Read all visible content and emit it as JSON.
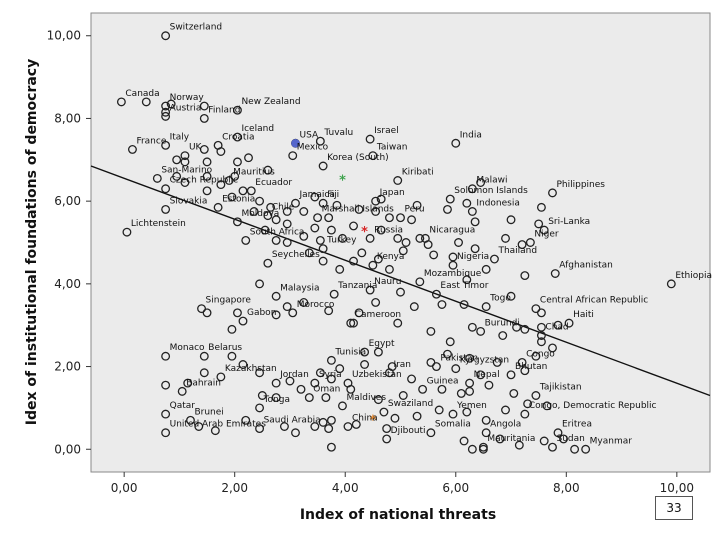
{
  "page_number": "33",
  "chart_data": {
    "type": "scatter",
    "xlabel": "Index of national threats",
    "ylabel": "Idex of institutional foundations of democracy",
    "xlim": [
      -0.6,
      10.6
    ],
    "ylim": [
      -0.55,
      10.55
    ],
    "xticks": [
      "0,00",
      "2,00",
      "4,00",
      "6,00",
      "8,00",
      "10,00"
    ],
    "xtick_values": [
      0,
      2,
      4,
      6,
      8,
      10
    ],
    "yticks": [
      "0,00",
      "2,00",
      "4,00",
      "6,00",
      "8,00",
      "10,00"
    ],
    "ytick_values": [
      0,
      2,
      4,
      6,
      8,
      10
    ],
    "grid": false,
    "plot_background": "#ebebeb",
    "marker_color": "#222222",
    "fit_line": {
      "x": [
        -0.6,
        10.6
      ],
      "y": [
        6.85,
        1.3
      ],
      "color": "#111111"
    },
    "highlight_points": [
      {
        "x": 3.1,
        "y": 7.4,
        "color": "#5566cc"
      },
      {
        "x": 3.95,
        "y": 6.5,
        "color": "#3fa34d"
      },
      {
        "x": 4.35,
        "y": 5.25,
        "color": "#d62728"
      },
      {
        "x": 4.5,
        "y": 0.7,
        "color": "#f28c28"
      }
    ],
    "labeled_points": [
      {
        "label": "Switzerland",
        "x": 0.75,
        "y": 10.0
      },
      {
        "label": "Canada",
        "x": -0.05,
        "y": 8.4
      },
      {
        "label": "Norway",
        "x": 0.75,
        "y": 8.3
      },
      {
        "label": "New Zealand",
        "x": 2.05,
        "y": 8.2
      },
      {
        "label": "Austria",
        "x": 0.75,
        "y": 8.05
      },
      {
        "label": "Finland",
        "x": 1.45,
        "y": 8.0
      },
      {
        "label": "Iceland",
        "x": 2.05,
        "y": 7.55
      },
      {
        "label": "France",
        "x": 0.15,
        "y": 7.25
      },
      {
        "label": "Italy",
        "x": 0.75,
        "y": 7.35
      },
      {
        "label": "Croatia",
        "x": 1.7,
        "y": 7.35
      },
      {
        "label": "UK",
        "x": 1.1,
        "y": 7.1
      },
      {
        "label": "USA",
        "x": 3.1,
        "y": 7.4
      },
      {
        "label": "Tuvalu",
        "x": 3.55,
        "y": 7.45
      },
      {
        "label": "Israel",
        "x": 4.45,
        "y": 7.5
      },
      {
        "label": "India",
        "x": 6.0,
        "y": 7.4
      },
      {
        "label": "Mexico",
        "x": 3.05,
        "y": 7.1
      },
      {
        "label": "Taiwan",
        "x": 4.5,
        "y": 7.1
      },
      {
        "label": "Korea (South)",
        "x": 3.6,
        "y": 6.85
      },
      {
        "label": "San-Marino",
        "x": 0.6,
        "y": 6.55
      },
      {
        "label": "Mauritius",
        "x": 1.9,
        "y": 6.5
      },
      {
        "label": "Kiribati",
        "x": 4.95,
        "y": 6.5
      },
      {
        "label": "Malawi",
        "x": 6.3,
        "y": 6.3
      },
      {
        "label": "Czech Republic",
        "x": 0.75,
        "y": 6.3
      },
      {
        "label": "Ecuador",
        "x": 2.3,
        "y": 6.25
      },
      {
        "label": "Japan",
        "x": 4.55,
        "y": 6.0
      },
      {
        "label": "Solomon Islands",
        "x": 5.9,
        "y": 6.05
      },
      {
        "label": "Philippines",
        "x": 7.75,
        "y": 6.2
      },
      {
        "label": "Jamaica",
        "x": 3.1,
        "y": 5.95
      },
      {
        "label": "Fiji",
        "x": 3.6,
        "y": 5.95
      },
      {
        "label": "Estonia",
        "x": 1.7,
        "y": 5.85
      },
      {
        "label": "Slovakia",
        "x": 0.75,
        "y": 5.8
      },
      {
        "label": "Chile",
        "x": 2.6,
        "y": 5.65
      },
      {
        "label": "Marshall Islands",
        "x": 3.5,
        "y": 5.6
      },
      {
        "label": "Peru",
        "x": 5.0,
        "y": 5.6
      },
      {
        "label": "Indonesia",
        "x": 6.3,
        "y": 5.75
      },
      {
        "label": "Moldova",
        "x": 2.05,
        "y": 5.5
      },
      {
        "label": "Sri-Lanka",
        "x": 7.6,
        "y": 5.3
      },
      {
        "label": "Lichtenstein",
        "x": 0.05,
        "y": 5.25
      },
      {
        "label": "Russia",
        "x": 4.45,
        "y": 5.1
      },
      {
        "label": "Nicaragua",
        "x": 5.45,
        "y": 5.1
      },
      {
        "label": "South Africa",
        "x": 2.2,
        "y": 5.05
      },
      {
        "label": "Niger",
        "x": 7.35,
        "y": 5.0
      },
      {
        "label": "Turkey",
        "x": 3.6,
        "y": 4.85
      },
      {
        "label": "Seychelles",
        "x": 2.6,
        "y": 4.5
      },
      {
        "label": "Kenya",
        "x": 4.5,
        "y": 4.45
      },
      {
        "label": "Thailand",
        "x": 6.7,
        "y": 4.6
      },
      {
        "label": "Nigeria",
        "x": 5.95,
        "y": 4.45
      },
      {
        "label": "Afghanistan",
        "x": 7.8,
        "y": 4.25
      },
      {
        "label": "Ethiopia",
        "x": 9.9,
        "y": 4.0
      },
      {
        "label": "Mozambique",
        "x": 5.35,
        "y": 4.05
      },
      {
        "label": "East Timor",
        "x": 5.65,
        "y": 3.75
      },
      {
        "label": "Tanzania",
        "x": 3.8,
        "y": 3.75
      },
      {
        "label": "Nauru",
        "x": 4.45,
        "y": 3.85
      },
      {
        "label": "Malaysia",
        "x": 2.75,
        "y": 3.7
      },
      {
        "label": "Central African Republic",
        "x": 7.45,
        "y": 3.4
      },
      {
        "label": "Togo",
        "x": 6.55,
        "y": 3.45
      },
      {
        "label": "Singapore",
        "x": 1.4,
        "y": 3.4
      },
      {
        "label": "Morocco",
        "x": 3.05,
        "y": 3.3
      },
      {
        "label": "Gabon",
        "x": 2.15,
        "y": 3.1
      },
      {
        "label": "Haiti",
        "x": 8.05,
        "y": 3.05
      },
      {
        "label": "Cameroon",
        "x": 4.1,
        "y": 3.05
      },
      {
        "label": "Burundi",
        "x": 6.45,
        "y": 2.85
      },
      {
        "label": "Chad",
        "x": 7.55,
        "y": 2.75
      },
      {
        "label": "Monaco",
        "x": 0.75,
        "y": 2.25
      },
      {
        "label": "Belarus",
        "x": 1.45,
        "y": 2.25
      },
      {
        "label": "Egypt",
        "x": 4.35,
        "y": 2.35
      },
      {
        "label": "Tunisia",
        "x": 3.75,
        "y": 2.15
      },
      {
        "label": "Congo",
        "x": 7.2,
        "y": 2.1
      },
      {
        "label": "Pakistan",
        "x": 5.65,
        "y": 2.0
      },
      {
        "label": "Kyrgyzstan",
        "x": 6.0,
        "y": 1.95
      },
      {
        "label": "Iran",
        "x": 4.8,
        "y": 1.85
      },
      {
        "label": "Bhutan",
        "x": 7.0,
        "y": 1.8
      },
      {
        "label": "Kazakhstan",
        "x": 1.75,
        "y": 1.75
      },
      {
        "label": "Nepal",
        "x": 6.25,
        "y": 1.6
      },
      {
        "label": "Jordan",
        "x": 2.75,
        "y": 1.6
      },
      {
        "label": "Syria",
        "x": 3.45,
        "y": 1.6
      },
      {
        "label": "Uzbekistan",
        "x": 4.05,
        "y": 1.6
      },
      {
        "label": "Bahrain",
        "x": 1.05,
        "y": 1.4
      },
      {
        "label": "Tajikistan",
        "x": 7.45,
        "y": 1.3
      },
      {
        "label": "Guinea",
        "x": 5.4,
        "y": 1.45
      },
      {
        "label": "Oman",
        "x": 3.35,
        "y": 1.25
      },
      {
        "label": "Tonga",
        "x": 2.45,
        "y": 1.0
      },
      {
        "label": "Maldives",
        "x": 3.95,
        "y": 1.05
      },
      {
        "label": "Qatar",
        "x": 0.75,
        "y": 0.85
      },
      {
        "label": "Brunei",
        "x": 1.2,
        "y": 0.7
      },
      {
        "label": "Swaziland",
        "x": 4.7,
        "y": 0.9
      },
      {
        "label": "Yemen",
        "x": 5.95,
        "y": 0.85
      },
      {
        "label": "Congo, Democratic Republic",
        "x": 7.25,
        "y": 0.85
      },
      {
        "label": "China",
        "x": 4.05,
        "y": 0.55
      },
      {
        "label": "United Arab Emirates",
        "x": 0.75,
        "y": 0.4
      },
      {
        "label": "Saudi Arabia",
        "x": 2.45,
        "y": 0.5
      },
      {
        "label": "Somalia",
        "x": 5.55,
        "y": 0.4
      },
      {
        "label": "Angola",
        "x": 6.55,
        "y": 0.4
      },
      {
        "label": "Eritrea",
        "x": 7.85,
        "y": 0.4
      },
      {
        "label": "Djibouti",
        "x": 4.75,
        "y": 0.25
      },
      {
        "label": "Mauritania",
        "x": 6.5,
        "y": 0.05
      },
      {
        "label": "Sudan",
        "x": 7.75,
        "y": 0.05
      },
      {
        "label": "Myanmar",
        "x": 8.35,
        "y": 0.0
      }
    ],
    "unlabeled_points": [
      {
        "x": 0.75,
        "y": 8.15
      },
      {
        "x": 0.85,
        "y": 8.35
      },
      {
        "x": 1.45,
        "y": 8.3
      },
      {
        "x": 0.4,
        "y": 8.4
      },
      {
        "x": 1.45,
        "y": 7.25
      },
      {
        "x": 1.75,
        "y": 7.2
      },
      {
        "x": 0.95,
        "y": 7.0
      },
      {
        "x": 1.1,
        "y": 6.95
      },
      {
        "x": 0.95,
        "y": 6.6
      },
      {
        "x": 1.1,
        "y": 6.45
      },
      {
        "x": 1.5,
        "y": 6.95
      },
      {
        "x": 1.5,
        "y": 6.6
      },
      {
        "x": 1.5,
        "y": 6.25
      },
      {
        "x": 1.75,
        "y": 6.4
      },
      {
        "x": 2.0,
        "y": 6.6
      },
      {
        "x": 2.25,
        "y": 7.05
      },
      {
        "x": 2.05,
        "y": 6.95
      },
      {
        "x": 2.6,
        "y": 6.75
      },
      {
        "x": 2.15,
        "y": 6.25
      },
      {
        "x": 1.95,
        "y": 6.1
      },
      {
        "x": 2.45,
        "y": 6.0
      },
      {
        "x": 2.65,
        "y": 5.85
      },
      {
        "x": 2.35,
        "y": 5.75
      },
      {
        "x": 2.75,
        "y": 5.55
      },
      {
        "x": 2.95,
        "y": 5.75
      },
      {
        "x": 2.95,
        "y": 5.45
      },
      {
        "x": 2.55,
        "y": 5.3
      },
      {
        "x": 2.75,
        "y": 5.05
      },
      {
        "x": 2.95,
        "y": 5.0
      },
      {
        "x": 3.25,
        "y": 5.15
      },
      {
        "x": 3.45,
        "y": 5.35
      },
      {
        "x": 3.55,
        "y": 5.05
      },
      {
        "x": 3.25,
        "y": 5.75
      },
      {
        "x": 3.45,
        "y": 6.1
      },
      {
        "x": 3.7,
        "y": 5.6
      },
      {
        "x": 3.85,
        "y": 5.9
      },
      {
        "x": 3.75,
        "y": 5.3
      },
      {
        "x": 3.95,
        "y": 5.1
      },
      {
        "x": 4.15,
        "y": 5.4
      },
      {
        "x": 4.25,
        "y": 5.8
      },
      {
        "x": 4.55,
        "y": 5.75
      },
      {
        "x": 4.65,
        "y": 6.05
      },
      {
        "x": 4.8,
        "y": 5.6
      },
      {
        "x": 4.65,
        "y": 5.3
      },
      {
        "x": 4.95,
        "y": 5.1
      },
      {
        "x": 5.1,
        "y": 5.0
      },
      {
        "x": 5.35,
        "y": 5.1
      },
      {
        "x": 5.2,
        "y": 5.55
      },
      {
        "x": 5.3,
        "y": 5.9
      },
      {
        "x": 5.85,
        "y": 5.8
      },
      {
        "x": 6.35,
        "y": 5.5
      },
      {
        "x": 6.2,
        "y": 5.95
      },
      {
        "x": 6.45,
        "y": 6.45
      },
      {
        "x": 6.9,
        "y": 5.1
      },
      {
        "x": 7.2,
        "y": 4.95
      },
      {
        "x": 7.0,
        "y": 5.55
      },
      {
        "x": 7.5,
        "y": 5.45
      },
      {
        "x": 7.55,
        "y": 5.85
      },
      {
        "x": 6.05,
        "y": 5.0
      },
      {
        "x": 5.95,
        "y": 4.65
      },
      {
        "x": 5.6,
        "y": 4.7
      },
      {
        "x": 5.5,
        "y": 4.95
      },
      {
        "x": 5.05,
        "y": 4.8
      },
      {
        "x": 4.6,
        "y": 4.6
      },
      {
        "x": 4.8,
        "y": 4.35
      },
      {
        "x": 4.15,
        "y": 4.55
      },
      {
        "x": 4.3,
        "y": 4.75
      },
      {
        "x": 3.9,
        "y": 4.35
      },
      {
        "x": 3.6,
        "y": 4.55
      },
      {
        "x": 3.35,
        "y": 4.75
      },
      {
        "x": 6.35,
        "y": 4.85
      },
      {
        "x": 6.55,
        "y": 4.35
      },
      {
        "x": 6.2,
        "y": 4.1
      },
      {
        "x": 7.0,
        "y": 3.7
      },
      {
        "x": 7.25,
        "y": 4.2
      },
      {
        "x": 7.55,
        "y": 3.3
      },
      {
        "x": 7.25,
        "y": 2.9
      },
      {
        "x": 7.55,
        "y": 2.95
      },
      {
        "x": 7.75,
        "y": 2.45
      },
      {
        "x": 7.85,
        "y": 3.0
      },
      {
        "x": 7.55,
        "y": 2.6
      },
      {
        "x": 6.15,
        "y": 3.5
      },
      {
        "x": 5.75,
        "y": 3.5
      },
      {
        "x": 5.25,
        "y": 3.45
      },
      {
        "x": 5.0,
        "y": 3.8
      },
      {
        "x": 4.55,
        "y": 3.55
      },
      {
        "x": 4.25,
        "y": 3.3
      },
      {
        "x": 4.15,
        "y": 3.05
      },
      {
        "x": 3.7,
        "y": 3.35
      },
      {
        "x": 3.25,
        "y": 3.55
      },
      {
        "x": 2.95,
        "y": 3.45
      },
      {
        "x": 2.75,
        "y": 3.25
      },
      {
        "x": 2.45,
        "y": 4.0
      },
      {
        "x": 2.05,
        "y": 3.3
      },
      {
        "x": 1.95,
        "y": 2.9
      },
      {
        "x": 1.5,
        "y": 3.3
      },
      {
        "x": 4.95,
        "y": 3.05
      },
      {
        "x": 5.55,
        "y": 2.85
      },
      {
        "x": 5.9,
        "y": 2.6
      },
      {
        "x": 6.3,
        "y": 2.95
      },
      {
        "x": 6.85,
        "y": 2.75
      },
      {
        "x": 7.1,
        "y": 2.95
      },
      {
        "x": 7.45,
        "y": 2.25
      },
      {
        "x": 7.25,
        "y": 1.9
      },
      {
        "x": 6.75,
        "y": 2.1
      },
      {
        "x": 6.45,
        "y": 1.8
      },
      {
        "x": 6.25,
        "y": 2.2
      },
      {
        "x": 5.85,
        "y": 2.3
      },
      {
        "x": 5.55,
        "y": 2.1
      },
      {
        "x": 5.2,
        "y": 1.7
      },
      {
        "x": 4.85,
        "y": 2.0
      },
      {
        "x": 4.6,
        "y": 2.35
      },
      {
        "x": 4.35,
        "y": 2.05
      },
      {
        "x": 3.9,
        "y": 1.95
      },
      {
        "x": 3.75,
        "y": 1.7
      },
      {
        "x": 3.55,
        "y": 1.85
      },
      {
        "x": 3.0,
        "y": 1.65
      },
      {
        "x": 2.45,
        "y": 1.85
      },
      {
        "x": 2.15,
        "y": 2.05
      },
      {
        "x": 1.95,
        "y": 2.25
      },
      {
        "x": 1.45,
        "y": 1.85
      },
      {
        "x": 0.75,
        "y": 1.55
      },
      {
        "x": 1.15,
        "y": 1.6
      },
      {
        "x": 2.5,
        "y": 1.3
      },
      {
        "x": 2.75,
        "y": 1.25
      },
      {
        "x": 3.2,
        "y": 1.45
      },
      {
        "x": 3.65,
        "y": 1.25
      },
      {
        "x": 4.1,
        "y": 1.45
      },
      {
        "x": 4.6,
        "y": 1.2
      },
      {
        "x": 5.05,
        "y": 1.3
      },
      {
        "x": 5.75,
        "y": 1.45
      },
      {
        "x": 6.1,
        "y": 1.35
      },
      {
        "x": 6.25,
        "y": 1.4
      },
      {
        "x": 6.6,
        "y": 1.55
      },
      {
        "x": 7.05,
        "y": 1.35
      },
      {
        "x": 7.3,
        "y": 1.1
      },
      {
        "x": 7.65,
        "y": 1.05
      },
      {
        "x": 6.9,
        "y": 0.95
      },
      {
        "x": 6.55,
        "y": 0.7
      },
      {
        "x": 6.2,
        "y": 0.9
      },
      {
        "x": 5.7,
        "y": 0.95
      },
      {
        "x": 5.3,
        "y": 0.8
      },
      {
        "x": 4.9,
        "y": 0.75
      },
      {
        "x": 4.75,
        "y": 0.5
      },
      {
        "x": 4.2,
        "y": 0.6
      },
      {
        "x": 3.75,
        "y": 0.7
      },
      {
        "x": 3.6,
        "y": 0.65
      },
      {
        "x": 3.45,
        "y": 0.55
      },
      {
        "x": 3.7,
        "y": 0.5
      },
      {
        "x": 3.75,
        "y": 0.05
      },
      {
        "x": 3.1,
        "y": 0.4
      },
      {
        "x": 2.9,
        "y": 0.55
      },
      {
        "x": 2.2,
        "y": 0.7
      },
      {
        "x": 1.65,
        "y": 0.45
      },
      {
        "x": 1.35,
        "y": 0.55
      },
      {
        "x": 6.15,
        "y": 0.2
      },
      {
        "x": 6.3,
        "y": 0.0
      },
      {
        "x": 6.5,
        "y": 0.0
      },
      {
        "x": 6.8,
        "y": 0.25
      },
      {
        "x": 7.15,
        "y": 0.1
      },
      {
        "x": 7.6,
        "y": 0.2
      },
      {
        "x": 8.15,
        "y": 0.0
      },
      {
        "x": 7.95,
        "y": 0.25
      }
    ]
  }
}
